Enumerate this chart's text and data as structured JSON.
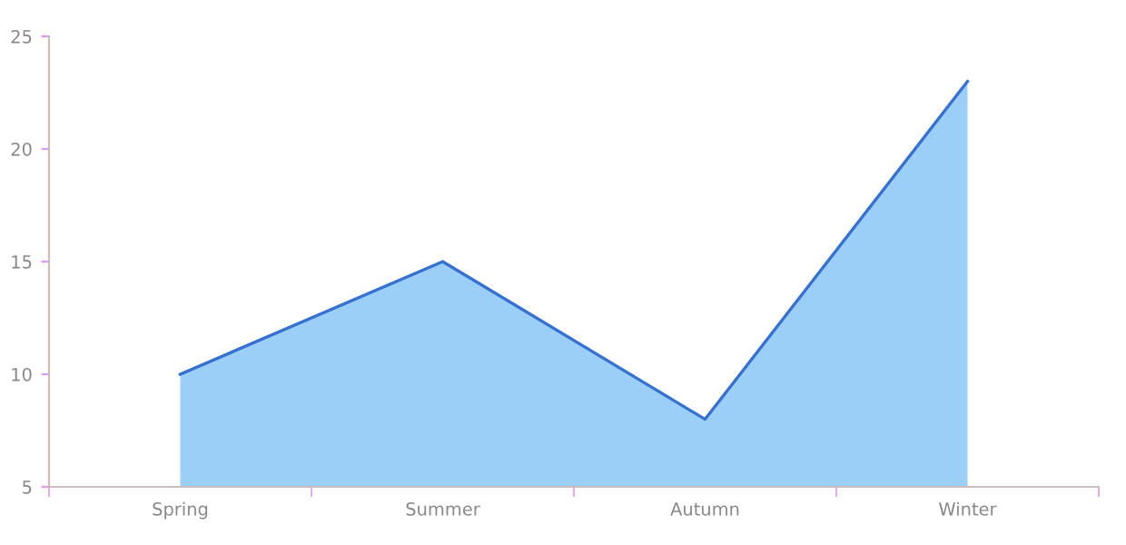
{
  "chart_data": {
    "type": "area",
    "categories": [
      "Spring",
      "Summer",
      "Autumn",
      "Winter"
    ],
    "series": [
      {
        "color": "#9ccff8",
        "values": [
          10,
          15,
          8,
          23
        ]
      }
    ],
    "ylim": [
      5,
      25
    ],
    "yticks": [
      5,
      10,
      15,
      20,
      25
    ],
    "grid": false,
    "legend": false
  }
}
